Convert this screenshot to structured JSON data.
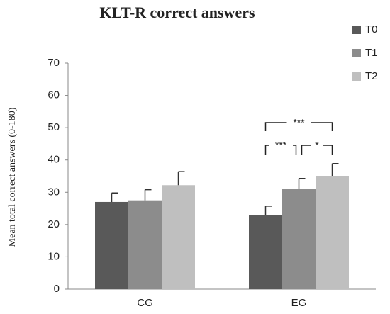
{
  "chart_data": {
    "type": "bar",
    "title": "KLT-R correct answers",
    "y_label": "Mean total correct answers (0-180)",
    "categories": [
      "CG",
      "EG"
    ],
    "series": [
      {
        "name": "T0",
        "color": "#595959",
        "values": [
          27,
          23
        ],
        "errors": [
          2.8,
          2.7
        ]
      },
      {
        "name": "T1",
        "color": "#8c8c8c",
        "values": [
          27.5,
          31
        ],
        "errors": [
          3.3,
          3.3
        ]
      },
      {
        "name": "T2",
        "color": "#bfbfbf",
        "values": [
          32.2,
          35.1
        ],
        "errors": [
          4.2,
          3.8
        ]
      }
    ],
    "annotations": [
      "***",
      "***",
      "*"
    ],
    "ylim": [
      0,
      70
    ],
    "yticks": [
      0,
      10,
      20,
      30,
      40,
      50,
      60,
      70
    ],
    "grid": false,
    "legend": "upper right"
  }
}
